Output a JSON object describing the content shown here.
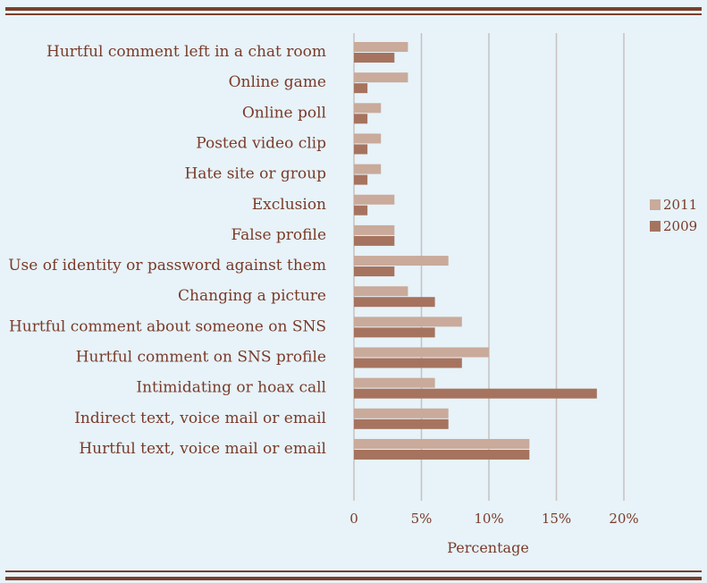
{
  "colors": {
    "background": "#e7f3f8",
    "series_2011": "#c9aa9b",
    "series_2009": "#a6735f",
    "grid": "#c7c2bf",
    "text": "#7a3a2a",
    "rule": "#7a3f2c"
  },
  "chart_data": {
    "type": "bar",
    "orientation": "horizontal",
    "title": "",
    "xlabel": "Percentage",
    "ylabel": "",
    "xlim": [
      0,
      20
    ],
    "x_ticks": [
      "0",
      "5%",
      "10%",
      "15%",
      "20%"
    ],
    "x_tick_values": [
      0,
      5,
      10,
      15,
      20
    ],
    "grid": true,
    "legend_position": "right",
    "categories": [
      "Hurtful comment left in a chat room",
      "Online game",
      "Online poll",
      "Posted video clip",
      "Hate site or group",
      "Exclusion",
      "False profile",
      "Use of identity or password against them",
      "Changing a picture",
      "Hurtful comment about someone on SNS",
      "Hurtful comment on SNS profile",
      "Intimidating or hoax call",
      "Indirect text, voice mail or email",
      "Hurtful text, voice mail or email"
    ],
    "series": [
      {
        "name": "2011",
        "values": [
          4,
          4,
          2,
          2,
          2,
          3,
          3,
          7,
          4,
          8,
          10,
          6,
          7,
          13
        ]
      },
      {
        "name": "2009",
        "values": [
          3,
          1,
          1,
          1,
          1,
          1,
          3,
          3,
          6,
          6,
          8,
          18,
          7,
          13
        ]
      }
    ]
  }
}
